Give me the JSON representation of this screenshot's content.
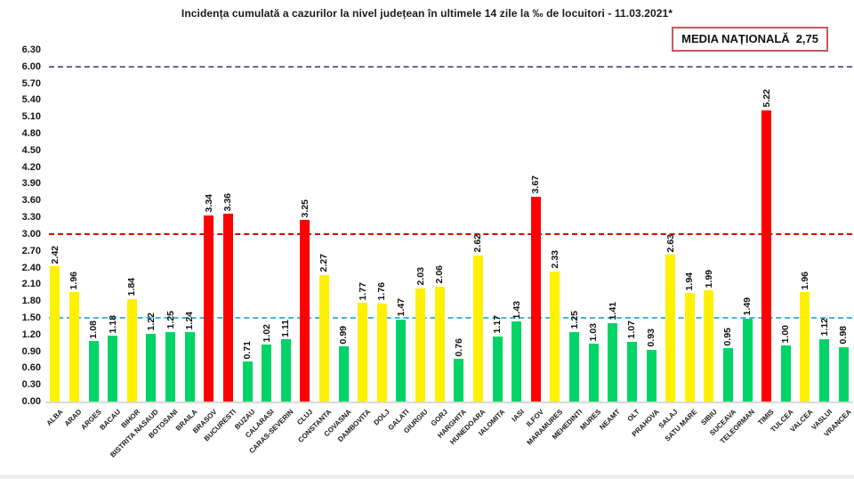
{
  "title": "Incidența cumulată a cazurilor la nivel județean în ultimele 14 zile la ‰ de locuitori - 11.03.2021*",
  "national_average": {
    "label": "MEDIA NAȚIONALĂ",
    "value": "2,75"
  },
  "chart_data": {
    "type": "bar",
    "title": "Incidența cumulată a cazurilor la nivel județean în ultimele 14 zile la ‰ de locuitori - 11.03.2021*",
    "xlabel": "",
    "ylabel": "",
    "ylim": [
      0,
      6.3
    ],
    "grid": false,
    "legend": "none",
    "yticks": [
      "0.00",
      "0.30",
      "0.60",
      "0.90",
      "1.20",
      "1.50",
      "1.80",
      "2.10",
      "2.40",
      "2.70",
      "3.00",
      "3.30",
      "3.60",
      "3.90",
      "4.20",
      "4.50",
      "4.80",
      "5.10",
      "5.40",
      "5.70",
      "6.00",
      "6.30"
    ],
    "thresholds": [
      {
        "value": 1.5,
        "color": "#45b5e0",
        "name": "alert-threshold-1.5"
      },
      {
        "value": 3.0,
        "color": "#dd0000",
        "name": "alert-threshold-3.0"
      },
      {
        "value": 6.0,
        "color": "#70609f",
        "name": "alert-threshold-6.0"
      }
    ],
    "palette": {
      "red": "#fe0000",
      "yellow": "#fff100",
      "green": "#00d466"
    },
    "categories": [
      "ALBA",
      "ARAD",
      "ARGES",
      "BACAU",
      "BIHOR",
      "BISTRITA NASAUD",
      "BOTOSANI",
      "BRAILA",
      "BRASOV",
      "BUCURESTI",
      "BUZAU",
      "CALARASI",
      "CARAS-SEVERIN",
      "CLUJ",
      "CONSTANTA",
      "COVASNA",
      "DAMBOVITA",
      "DOLJ",
      "GALATI",
      "GIURGIU",
      "GORJ",
      "HARGHITA",
      "HUNEDOARA",
      "IALOMITA",
      "IASI",
      "ILFOV",
      "MARAMURES",
      "MEHEDINTI",
      "MURES",
      "NEAMT",
      "OLT",
      "PRAHOVA",
      "SALAJ",
      "SATU MARE",
      "SIBIU",
      "SUCEAVA",
      "TELEORMAN",
      "TIMIS",
      "TULCEA",
      "VALCEA",
      "VASLUI",
      "VRANCEA"
    ],
    "values": [
      2.42,
      1.96,
      1.08,
      1.18,
      1.84,
      1.22,
      1.25,
      1.24,
      3.34,
      3.36,
      0.71,
      1.02,
      1.11,
      3.25,
      2.27,
      0.99,
      1.77,
      1.76,
      1.47,
      2.03,
      2.06,
      0.76,
      2.62,
      1.17,
      1.43,
      3.67,
      2.33,
      1.25,
      1.03,
      1.41,
      1.07,
      0.93,
      2.63,
      1.94,
      1.99,
      0.95,
      1.49,
      5.22,
      1.0,
      1.96,
      1.12,
      0.98
    ],
    "value_labels": [
      "2.42",
      "1.96",
      "1.08",
      "1.18",
      "1.84",
      "1.22",
      "1.25",
      "1.24",
      "3.34",
      "3.36",
      "0.71",
      "1.02",
      "1.11",
      "3.25",
      "2.27",
      "0.99",
      "1.77",
      "1.76",
      "1.47",
      "2.03",
      "2.06",
      "0.76",
      "2.62",
      "1.17",
      "1.43",
      "3.67",
      "2.33",
      "1.25",
      "1.03",
      "1.41",
      "1.07",
      "0.93",
      "2.63",
      "1.94",
      "1.99",
      "0.95",
      "1.49",
      "5.22",
      "1.00",
      "1.96",
      "1.12",
      "0.98"
    ],
    "bar_colors": [
      "yellow",
      "yellow",
      "green",
      "green",
      "yellow",
      "green",
      "green",
      "green",
      "red",
      "red",
      "green",
      "green",
      "green",
      "red",
      "yellow",
      "green",
      "yellow",
      "yellow",
      "green",
      "yellow",
      "yellow",
      "green",
      "yellow",
      "green",
      "green",
      "red",
      "yellow",
      "green",
      "green",
      "green",
      "green",
      "green",
      "yellow",
      "yellow",
      "yellow",
      "green",
      "green",
      "red",
      "green",
      "yellow",
      "green",
      "green"
    ]
  }
}
